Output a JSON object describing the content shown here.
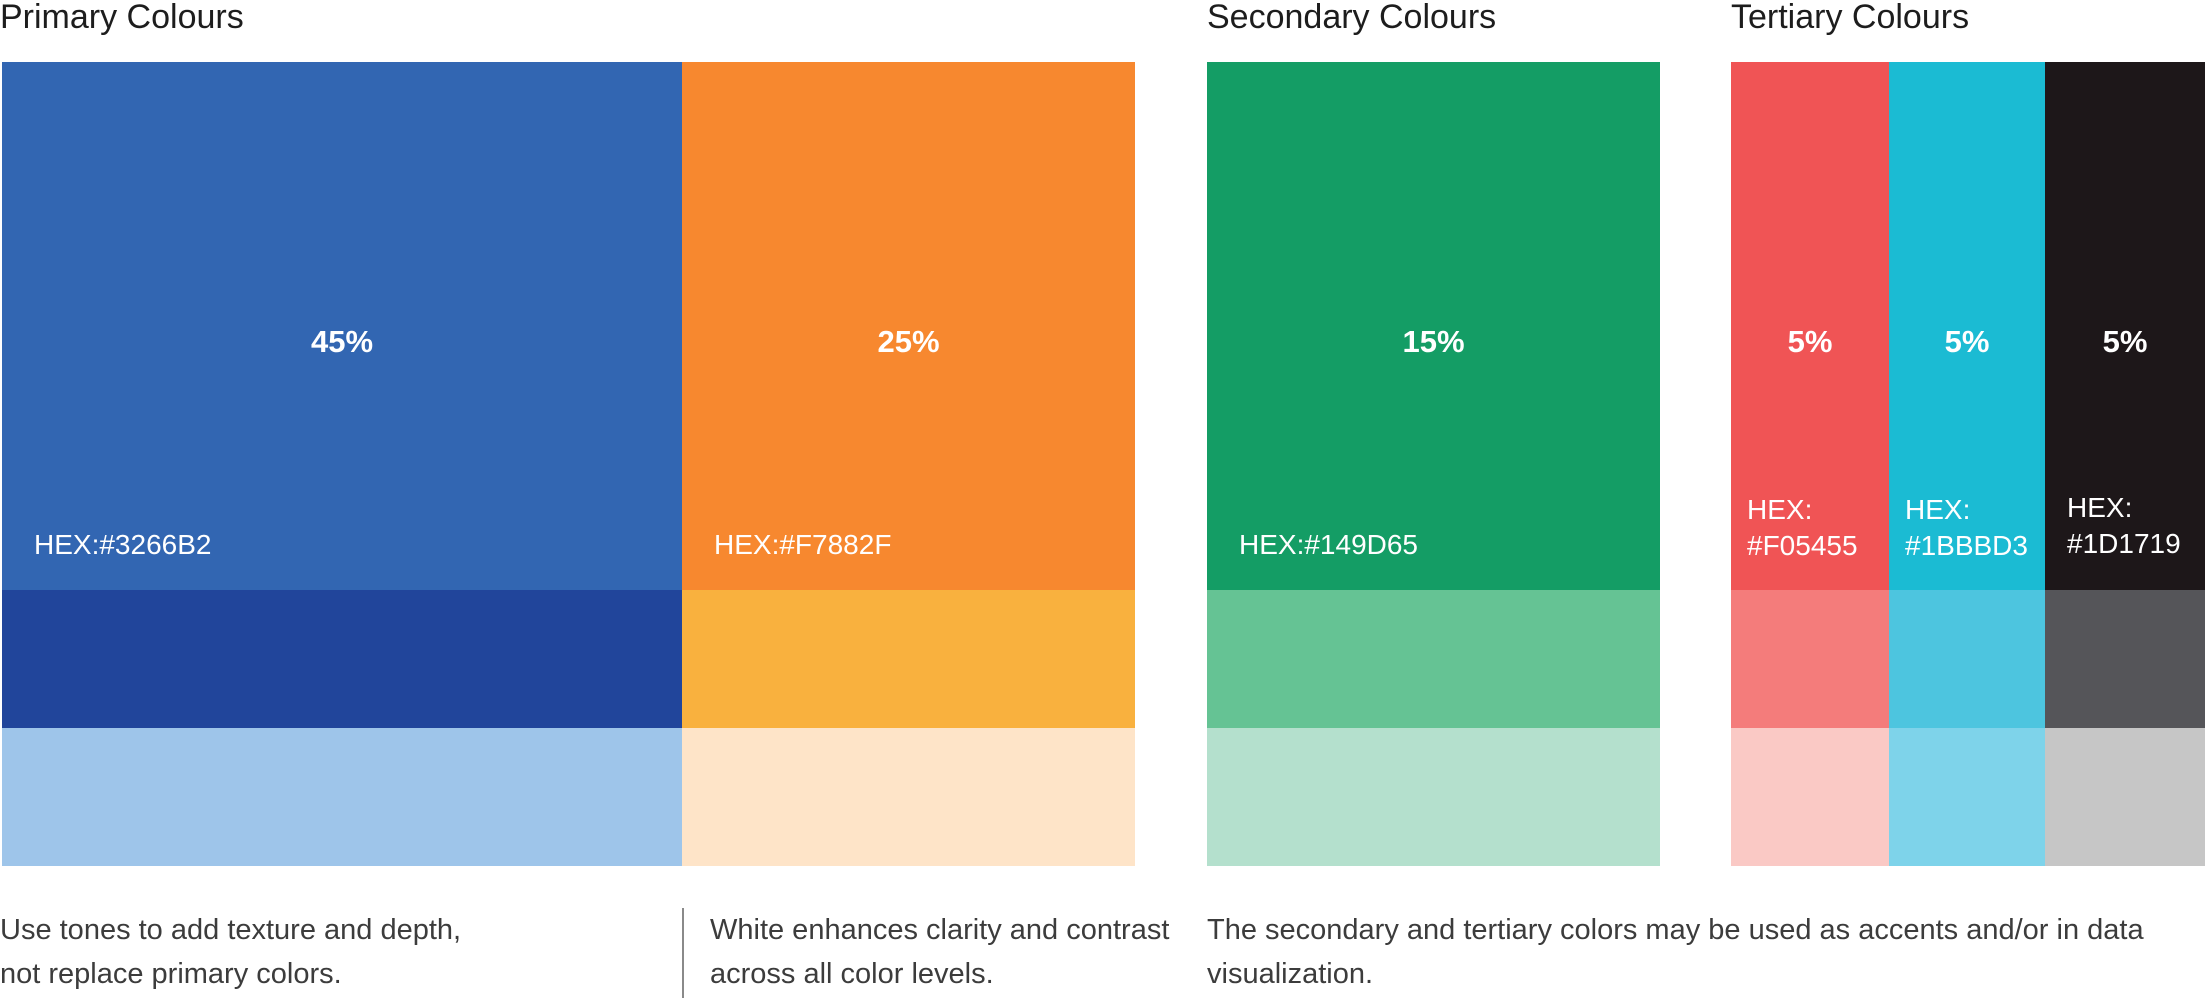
{
  "headings": {
    "primary": "Primary Colours",
    "secondary": "Secondary Colours",
    "tertiary": "Tertiary Colours"
  },
  "swatches": [
    {
      "name": "blue",
      "percent": "45%",
      "hex_line1": "HEX:#3266B2",
      "hex_line2": "",
      "main": "#3266B2",
      "tone1": "#21459B",
      "tone2": "#9EC5EA"
    },
    {
      "name": "orange",
      "percent": "25%",
      "hex_line1": "HEX:#F7882F",
      "hex_line2": "",
      "main": "#F7882F",
      "tone1": "#F9B13E",
      "tone2": "#FEE4C8"
    },
    {
      "name": "green",
      "percent": "15%",
      "hex_line1": "HEX:#149D65",
      "hex_line2": "",
      "main": "#149D65",
      "tone1": "#65C394",
      "tone2": "#B4E0CD"
    },
    {
      "name": "red",
      "percent": "5%",
      "hex_line1": "HEX:",
      "hex_line2": "#F05455",
      "main": "#F05455",
      "tone1": "#F47C7B",
      "tone2": "#FAC9C5"
    },
    {
      "name": "cyan",
      "percent": "5%",
      "hex_line1": "HEX:",
      "hex_line2": "#1BBBD3",
      "main": "#1BBBD3",
      "tone1": "#4DC5DF",
      "tone2": "#7ED3EA"
    },
    {
      "name": "black",
      "percent": "5%",
      "hex_line1": "HEX:",
      "hex_line2": "#1D1719",
      "main": "#1D1719",
      "tone1": "#555559",
      "tone2": "#C6C6C6"
    }
  ],
  "notes": {
    "tones": "Use tones to add texture and depth, not replace primary colors.",
    "white": "White enhances clarity and contrast across all color levels.",
    "accents": "The secondary and tertiary colors may be used as accents and/or in data visualization."
  }
}
